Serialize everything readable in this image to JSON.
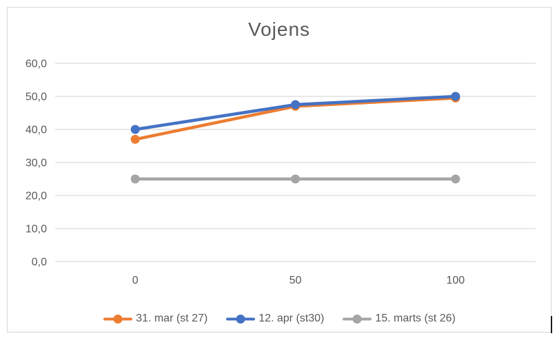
{
  "chart_data": {
    "type": "line",
    "title": "Vojens",
    "xlabel": "",
    "ylabel": "",
    "categories": [
      "0",
      "50",
      "100"
    ],
    "ylim": [
      0,
      60
    ],
    "yticks": [
      0,
      10,
      20,
      30,
      40,
      50,
      60
    ],
    "ytick_labels": [
      "0,0",
      "10,0",
      "20,0",
      "30,0",
      "40,0",
      "50,0",
      "60,0"
    ],
    "grid": true,
    "legend_position": "bottom",
    "marker": "circle",
    "series": [
      {
        "name": "31. mar (st 27)",
        "color": "#ED7D31",
        "values": [
          37,
          47,
          49.5
        ]
      },
      {
        "name": "12. apr (st30)",
        "color": "#4472C4",
        "values": [
          40,
          47.5,
          50
        ]
      },
      {
        "name": "15. marts (st 26)",
        "color": "#A5A5A5",
        "values": [
          25,
          25,
          25
        ]
      }
    ],
    "colors": {
      "gridline": "#D9D9D9",
      "tick_text": "#595959",
      "title_text": "#595959",
      "frame_border": "#D7D7D7"
    }
  }
}
